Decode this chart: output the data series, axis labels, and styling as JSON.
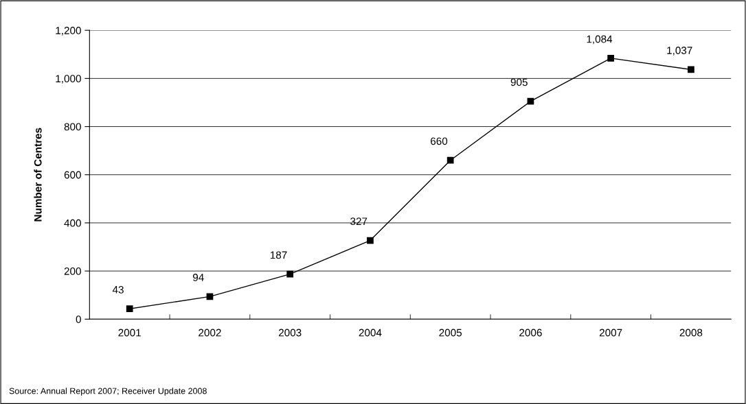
{
  "chart_data": {
    "type": "line",
    "ylabel": "Number of Centres",
    "categories": [
      "2001",
      "2002",
      "2003",
      "2004",
      "2005",
      "2006",
      "2007",
      "2008"
    ],
    "series": [
      {
        "color": "#000000",
        "values": [
          43,
          94,
          187,
          327,
          660,
          905,
          1084,
          1037
        ],
        "value_labels": [
          "43",
          "94",
          "187",
          "327",
          "660",
          "905",
          "1,084",
          "1,037"
        ]
      }
    ],
    "ylim": [
      0,
      1200
    ],
    "yticks": [
      {
        "value": 0,
        "label": "0"
      },
      {
        "value": 200,
        "label": "200"
      },
      {
        "value": 400,
        "label": "400"
      },
      {
        "value": 600,
        "label": "600"
      },
      {
        "value": 800,
        "label": "800"
      },
      {
        "value": 1000,
        "label": "1,000"
      },
      {
        "value": 1200,
        "label": "1,200"
      }
    ],
    "grid": "y",
    "marker": "square",
    "line_style": "solid",
    "annotations": [
      "Source: Annual Report 2007; Receiver Update 2008"
    ]
  }
}
